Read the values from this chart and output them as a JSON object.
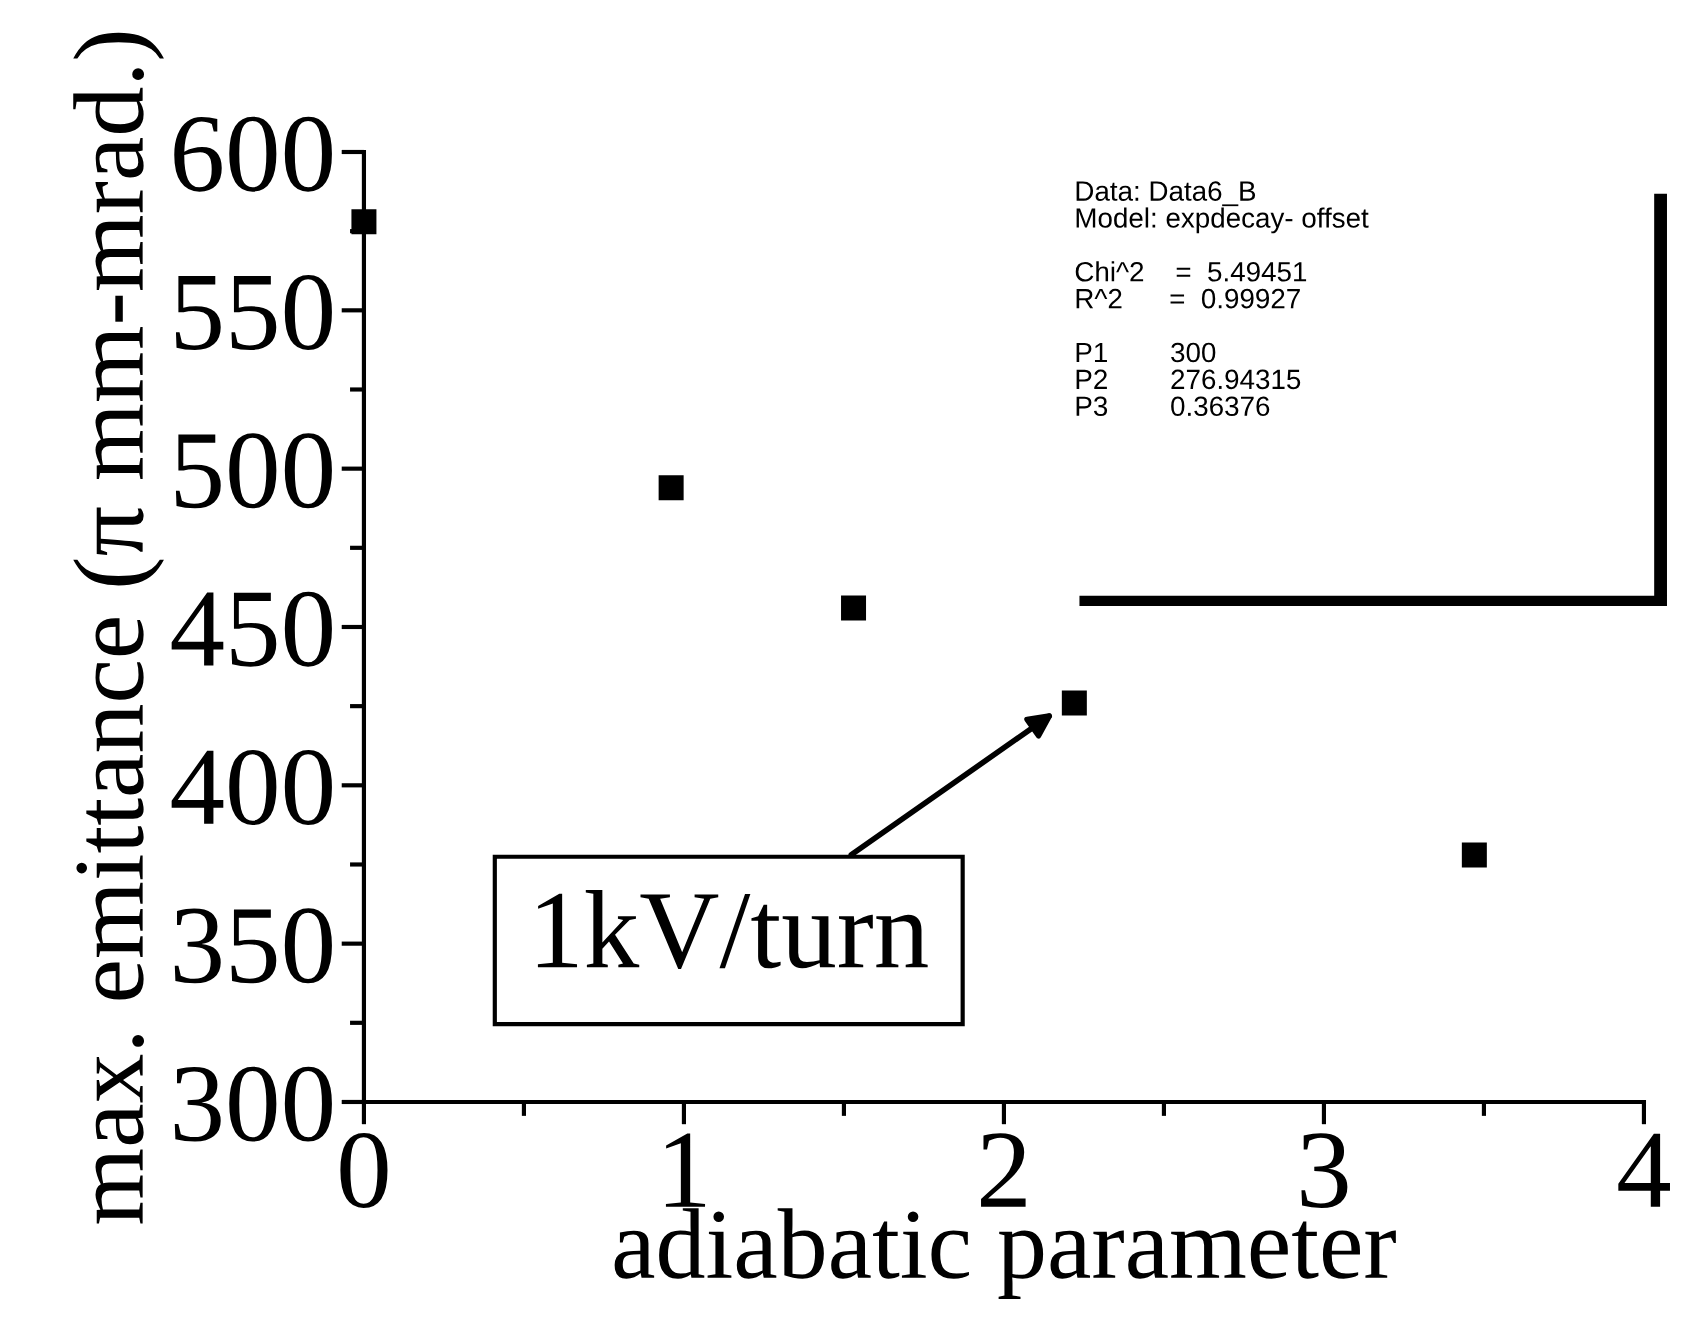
{
  "chart_data": {
    "type": "scatter",
    "xlabel": "adiabatic parameter",
    "ylabel": "max. emittance (π mm-mrad.)",
    "x": [
      0,
      0.96,
      1.53,
      2.22,
      3.47
    ],
    "values": [
      578,
      494,
      456,
      426,
      378
    ],
    "color": "#000000",
    "marker": "square",
    "xlim": [
      0,
      4
    ],
    "xticks": [
      0,
      1,
      2,
      3,
      4
    ],
    "ylim": [
      300,
      600
    ],
    "yticks": [
      300,
      350,
      400,
      450,
      500,
      550,
      600
    ],
    "grid": false,
    "legend": false,
    "annotations": [
      "Data: Data6_B\nModel: expdecay- offset\n\nChi^2    =  5.49451\nR^2      =  0.99927\n\nP1        300\nP2        276.94315\nP3        0.36376",
      {
        "text": "1kV/turn",
        "x": 2.2,
        "y": 426
      }
    ]
  }
}
